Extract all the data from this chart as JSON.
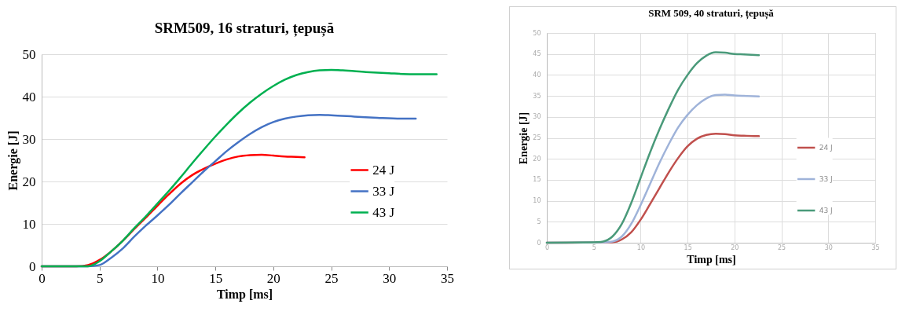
{
  "chart_data": [
    {
      "type": "line",
      "title": "SRM509, 16 straturi, țepușă",
      "xlabel": "Timp [ms]",
      "ylabel": "Energie [J]",
      "xlim": [
        0,
        35
      ],
      "xticks": [
        0,
        5,
        10,
        15,
        20,
        25,
        30,
        35
      ],
      "ylim": [
        0,
        50
      ],
      "yticks": [
        0,
        10,
        20,
        30,
        40,
        50
      ],
      "grid": "y",
      "legend": "right",
      "line_style": "solid",
      "series": [
        {
          "name": "24 J",
          "color": "#ff0000",
          "x": [
            0,
            3,
            4,
            5,
            6,
            7,
            8,
            9,
            10,
            11,
            12,
            13,
            14,
            15,
            16,
            17,
            18,
            19,
            20,
            21,
            22,
            22.7
          ],
          "values": [
            0,
            0,
            0.3,
            1.5,
            3.5,
            6,
            8.8,
            11.5,
            14.3,
            17,
            19.5,
            21.5,
            23,
            24.2,
            25.2,
            25.9,
            26.2,
            26.3,
            26.1,
            25.9,
            25.8,
            25.7
          ]
        },
        {
          "name": "33 J",
          "color": "#4472c4",
          "x": [
            0,
            4,
            5,
            6,
            7,
            8,
            9,
            10,
            11,
            12,
            13,
            14,
            15,
            16,
            17,
            18,
            19,
            20,
            21,
            22,
            23,
            24,
            25,
            27,
            29,
            31,
            32.3
          ],
          "values": [
            0,
            0,
            0.3,
            2,
            4.2,
            7,
            9.6,
            12,
            14.5,
            17.2,
            19.8,
            22.4,
            24.8,
            27.2,
            29.3,
            31.2,
            32.8,
            34,
            34.8,
            35.3,
            35.6,
            35.7,
            35.6,
            35.3,
            35,
            34.8,
            34.8
          ]
        },
        {
          "name": "43 J",
          "color": "#00b050",
          "x": [
            0,
            4,
            5,
            6,
            7,
            8,
            9,
            10,
            11,
            12,
            13,
            14,
            15,
            16,
            17,
            18,
            19,
            20,
            21,
            22,
            23,
            24,
            25,
            26,
            28,
            30,
            32,
            34.1
          ],
          "values": [
            0,
            0,
            1.2,
            3.5,
            6,
            9,
            11.8,
            14.8,
            17.8,
            21,
            24.3,
            27.5,
            30.6,
            33.5,
            36.2,
            38.6,
            40.7,
            42.5,
            44,
            45.1,
            45.8,
            46.2,
            46.3,
            46.2,
            45.8,
            45.5,
            45.3,
            45.3
          ]
        }
      ]
    },
    {
      "type": "line",
      "title": "SRM 509, 40 straturi, țepușă",
      "xlabel": "Timp [ms]",
      "ylabel": "Energie [J]",
      "xlim": [
        0,
        35
      ],
      "xticks": [
        0,
        5,
        10,
        15,
        20,
        25,
        30,
        35
      ],
      "ylim": [
        0,
        50
      ],
      "yticks": [
        0,
        5,
        10,
        15,
        20,
        25,
        30,
        35,
        40,
        45,
        50
      ],
      "grid": true,
      "legend": "right",
      "line_style": "solid",
      "series": [
        {
          "name": "24 J",
          "color": "#c0504d",
          "x": [
            0,
            7,
            8,
            9,
            10,
            11,
            12,
            13,
            14,
            15,
            16,
            17,
            18,
            19,
            20,
            21,
            22.6
          ],
          "values": [
            0,
            0.1,
            0.8,
            2.5,
            5.5,
            9.2,
            13,
            16.8,
            20.2,
            23,
            24.8,
            25.7,
            26,
            25.9,
            25.6,
            25.5,
            25.4
          ]
        },
        {
          "name": "33 J",
          "color": "#9fb3d9",
          "x": [
            0,
            6,
            7,
            8,
            9,
            10,
            11,
            12,
            13,
            14,
            15,
            16,
            17,
            18,
            19,
            20,
            21,
            22.6
          ],
          "values": [
            0,
            0.1,
            0.3,
            1.5,
            4.5,
            9,
            14,
            19,
            23.5,
            27.5,
            30.5,
            32.8,
            34.4,
            35.2,
            35.3,
            35.1,
            35,
            34.9
          ]
        },
        {
          "name": "43 J",
          "color": "#4a9a7a",
          "x": [
            0,
            5,
            6,
            7,
            8,
            9,
            10,
            11,
            12,
            13,
            14,
            15,
            16,
            17,
            18,
            19,
            20,
            21,
            22.6
          ],
          "values": [
            0,
            0.1,
            0.3,
            1.5,
            4.5,
            9.5,
            15.5,
            21.5,
            27,
            32,
            36.5,
            40,
            42.8,
            44.6,
            45.4,
            45.3,
            45,
            44.9,
            44.7
          ]
        }
      ]
    }
  ]
}
